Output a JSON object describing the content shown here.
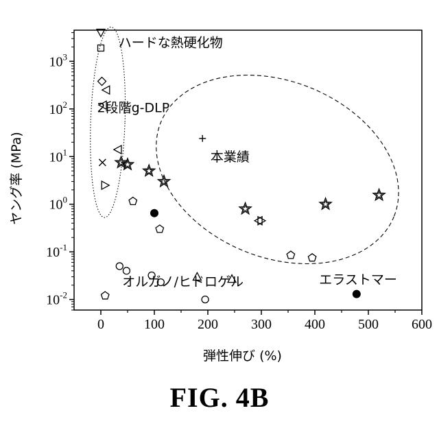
{
  "figure": {
    "caption": "FIG. 4B"
  },
  "chart_data": {
    "type": "scatter",
    "xlabel": "弾性伸び (%)",
    "ylabel": "ヤング率 (MPa)",
    "x_ticks": [
      "0",
      "100",
      "200",
      "300",
      "400",
      "500",
      "600"
    ],
    "y_ticks": [
      {
        "base": "10",
        "exp": "-2",
        "value": 0.01
      },
      {
        "base": "10",
        "exp": "-1",
        "value": 0.1
      },
      {
        "base": "10",
        "exp": "0",
        "value": 1
      },
      {
        "base": "10",
        "exp": "1",
        "value": 10
      },
      {
        "base": "10",
        "exp": "2",
        "value": 100
      },
      {
        "base": "10",
        "exp": "3",
        "value": 1000
      }
    ],
    "xlim": [
      -50,
      600
    ],
    "ylim": [
      0.006,
      4500
    ],
    "y_scale": "log",
    "annotations": [
      {
        "text": "ハードな熱硬化物",
        "x": 33,
        "y": 2000
      },
      {
        "text": "2段階g-DLP",
        "x": -7,
        "y": 85
      },
      {
        "text": "本業績",
        "x": 205,
        "y": 8
      },
      {
        "text": "オルガノ/ヒドロゲル",
        "x": 40,
        "y": 0.019
      },
      {
        "text": "エラストマー",
        "x": 408,
        "y": 0.021
      }
    ],
    "series": [
      {
        "marker": "triangle-down",
        "points": [
          [
            0,
            4000
          ]
        ]
      },
      {
        "marker": "square",
        "points": [
          [
            0,
            1900
          ]
        ]
      },
      {
        "marker": "diamond",
        "points": [
          [
            2,
            380
          ]
        ]
      },
      {
        "marker": "triangle-left",
        "points": [
          [
            10,
            250
          ],
          [
            4,
            120
          ],
          [
            32,
            14
          ],
          [
            295,
            0.45
          ]
        ]
      },
      {
        "marker": "triangle-right",
        "points": [
          [
            8,
            2.5
          ],
          [
            300,
            0.45
          ]
        ]
      },
      {
        "marker": "x",
        "points": [
          [
            3,
            7.5
          ]
        ]
      },
      {
        "marker": "plus",
        "points": [
          [
            190,
            24
          ]
        ]
      },
      {
        "marker": "star",
        "points": [
          [
            38,
            7.5
          ],
          [
            50,
            6.8
          ],
          [
            90,
            5.0
          ],
          [
            118,
            3.0
          ],
          [
            270,
            0.8
          ],
          [
            420,
            1.0
          ],
          [
            520,
            1.55
          ]
        ]
      },
      {
        "marker": "pentagon",
        "points": [
          [
            60,
            1.15
          ],
          [
            110,
            0.3
          ],
          [
            355,
            0.085
          ],
          [
            395,
            0.075
          ],
          [
            8,
            0.012
          ]
        ]
      },
      {
        "marker": "circle-open",
        "points": [
          [
            35,
            0.05
          ],
          [
            48,
            0.04
          ],
          [
            95,
            0.032
          ],
          [
            112,
            0.023
          ],
          [
            195,
            0.01
          ]
        ]
      },
      {
        "marker": "triangle-up",
        "points": [
          [
            180,
            0.03
          ],
          [
            245,
            0.027
          ]
        ]
      },
      {
        "marker": "circle-filled",
        "points": [
          [
            100,
            0.65
          ],
          [
            478,
            0.013
          ]
        ]
      }
    ],
    "regions": [
      {
        "kind": "dotted-ellipse",
        "cx": 13,
        "log_cy": 1.72,
        "rx": 32,
        "log_ry": 2.0,
        "rotation": 2
      },
      {
        "kind": "dashed-ellipse",
        "cx": 330,
        "log_cy": 0.73,
        "rx": 235,
        "log_ry": 1.85,
        "rotation": 22
      }
    ]
  }
}
